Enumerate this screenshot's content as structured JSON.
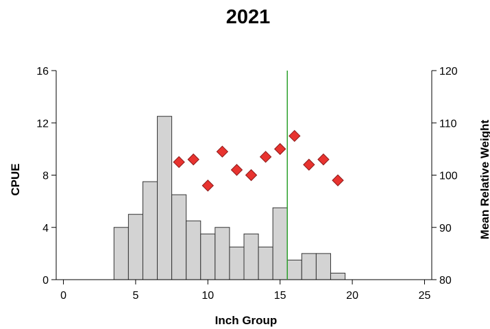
{
  "chart_data": {
    "type": "bar",
    "title": "2021",
    "xlabel": "Inch Group",
    "ylabel": "CPUE",
    "y2label": "Mean Relative Weight",
    "xlim": [
      -0.5,
      25.5
    ],
    "ylim": [
      0,
      16
    ],
    "y2lim": [
      80,
      120
    ],
    "xticks": [
      0,
      5,
      10,
      15,
      20,
      25
    ],
    "yticks": [
      0,
      4,
      8,
      12,
      16
    ],
    "y2ticks": [
      80,
      90,
      100,
      110,
      120
    ],
    "grid": false,
    "colors": {
      "bar_fill": "#d3d3d3",
      "bar_stroke": "#333333",
      "marker_fill": "#e8332f",
      "marker_stroke": "#8b1a1a",
      "reference_line": "#2ca02c"
    },
    "series": [
      {
        "type": "bar",
        "axis": "left",
        "x": [
          4,
          5,
          6,
          7,
          8,
          9,
          10,
          11,
          12,
          13,
          14,
          15,
          16,
          17,
          18,
          19
        ],
        "values": [
          4.0,
          5.0,
          7.5,
          12.5,
          6.5,
          4.5,
          3.5,
          4.0,
          2.5,
          3.5,
          2.5,
          5.5,
          1.5,
          2.0,
          2.0,
          0.5
        ]
      },
      {
        "type": "scatter",
        "marker": "diamond",
        "axis": "right",
        "x": [
          8,
          9,
          10,
          11,
          12,
          13,
          14,
          15,
          16,
          17,
          18,
          19
        ],
        "values": [
          102.5,
          103,
          98,
          104.5,
          101,
          100,
          103.5,
          105,
          107.5,
          102,
          103,
          99
        ]
      }
    ],
    "reference_lines": [
      {
        "orientation": "vertical",
        "x": 15.5
      }
    ]
  }
}
